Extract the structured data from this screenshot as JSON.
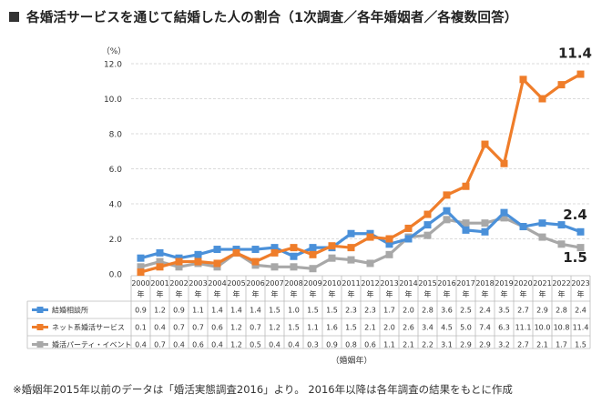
{
  "title": "各婚活サービスを通じて結婚した人の割合（1次調査／各年婚姻者／各複数回答）",
  "footnote": "※婚姻年2015年以前のデータは「婚活実態調査2016」より。 2016年以降は各年調査の結果をもとに作成",
  "colors": {
    "blue": "#4a90d9",
    "orange": "#ef7d2a",
    "gray": "#a8a8a8",
    "grid": "#d0d0d0",
    "text": "#333333"
  },
  "chart_data": {
    "type": "line",
    "title": "各婚活サービスを通じて結婚した人の割合（1次調査／各年婚姻者／各複数回答）",
    "xlabel": "（婚姻年）",
    "ylabel": "（%）",
    "ylim": [
      0,
      12
    ],
    "yticks": [
      "0.0",
      "2.0",
      "4.0",
      "6.0",
      "8.0",
      "10.0",
      "12.0"
    ],
    "grid": true,
    "x_suffix": "年",
    "categories": [
      "2000",
      "2001",
      "2002",
      "2003",
      "2004",
      "2005",
      "2006",
      "2007",
      "2008",
      "2009",
      "2010",
      "2011",
      "2012",
      "2013",
      "2014",
      "2015",
      "2016",
      "2017",
      "2018",
      "2019",
      "2020",
      "2021",
      "2022",
      "2023"
    ],
    "series": [
      {
        "name": "結婚相談所",
        "color": "#4a90d9",
        "end_label": "2.4",
        "values": [
          0.9,
          1.2,
          0.9,
          1.1,
          1.4,
          1.4,
          1.4,
          1.5,
          1.0,
          1.5,
          1.5,
          2.3,
          2.3,
          1.7,
          2.0,
          2.8,
          3.6,
          2.5,
          2.4,
          3.5,
          2.7,
          2.9,
          2.8,
          2.4
        ]
      },
      {
        "name": "ネット系婚活サービス",
        "color": "#ef7d2a",
        "end_label": "11.4",
        "values": [
          0.1,
          0.4,
          0.7,
          0.7,
          0.6,
          1.2,
          0.7,
          1.2,
          1.5,
          1.1,
          1.6,
          1.5,
          2.1,
          2.0,
          2.6,
          3.4,
          4.5,
          5.0,
          7.4,
          6.3,
          11.1,
          10.0,
          10.8,
          11.4
        ]
      },
      {
        "name": "婚活パーティ・イベント",
        "color": "#a8a8a8",
        "end_label": "1.5",
        "values": [
          0.4,
          0.7,
          0.4,
          0.6,
          0.4,
          1.2,
          0.5,
          0.4,
          0.4,
          0.3,
          0.9,
          0.8,
          0.6,
          1.1,
          2.1,
          2.2,
          3.1,
          2.9,
          2.9,
          3.2,
          2.7,
          2.1,
          1.7,
          1.5
        ]
      }
    ]
  }
}
